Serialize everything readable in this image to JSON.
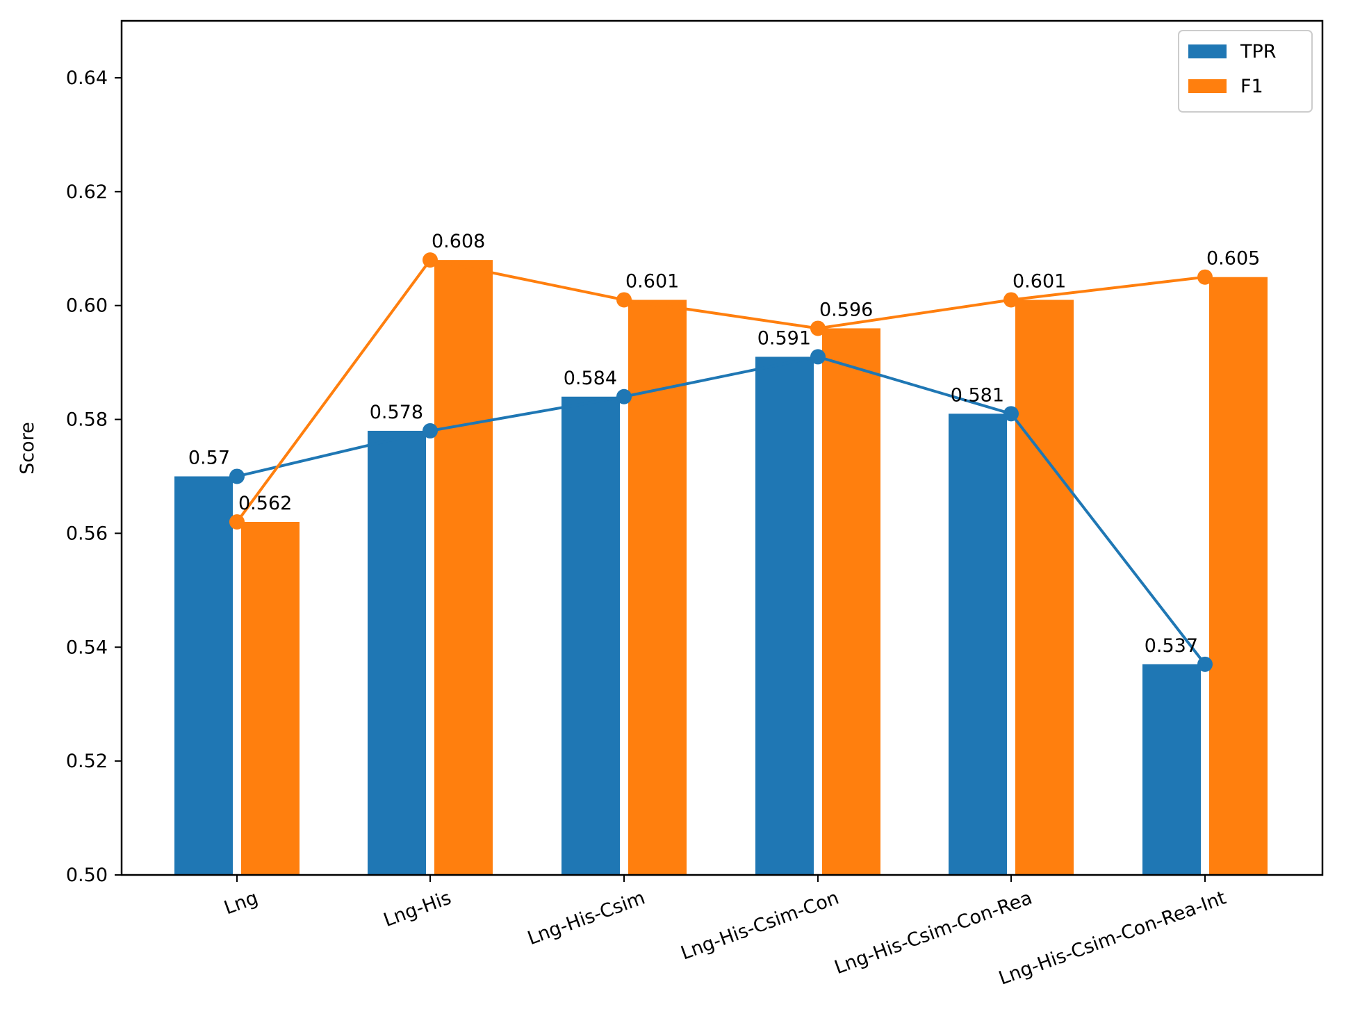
{
  "chart_data": {
    "type": "bar",
    "title": "",
    "xlabel": "",
    "ylabel": "Score",
    "ylim": [
      0.5,
      0.65
    ],
    "yticks": [
      "0.50",
      "0.52",
      "0.54",
      "0.56",
      "0.58",
      "0.60",
      "0.62",
      "0.64"
    ],
    "categories": [
      "Lng",
      "Lng-His",
      "Lng-His-Csim",
      "Lng-His-Csim-Con",
      "Lng-His-Csim-Con-Rea",
      "Lng-His-Csim-Con-Rea-Int"
    ],
    "series": [
      {
        "name": "TPR",
        "color": "#1f77b4",
        "values": [
          0.57,
          0.578,
          0.584,
          0.591,
          0.581,
          0.537
        ],
        "labels": [
          "0.57",
          "0.578",
          "0.584",
          "0.591",
          "0.581",
          "0.537"
        ]
      },
      {
        "name": "F1",
        "color": "#ff7f0e",
        "values": [
          0.562,
          0.608,
          0.601,
          0.596,
          0.601,
          0.605
        ],
        "labels": [
          "0.562",
          "0.608",
          "0.601",
          "0.596",
          "0.601",
          "0.605"
        ]
      }
    ],
    "overlay_lines": "each series also drawn as a line with circular markers through its bar values",
    "legend": "top-right",
    "grid": false
  }
}
